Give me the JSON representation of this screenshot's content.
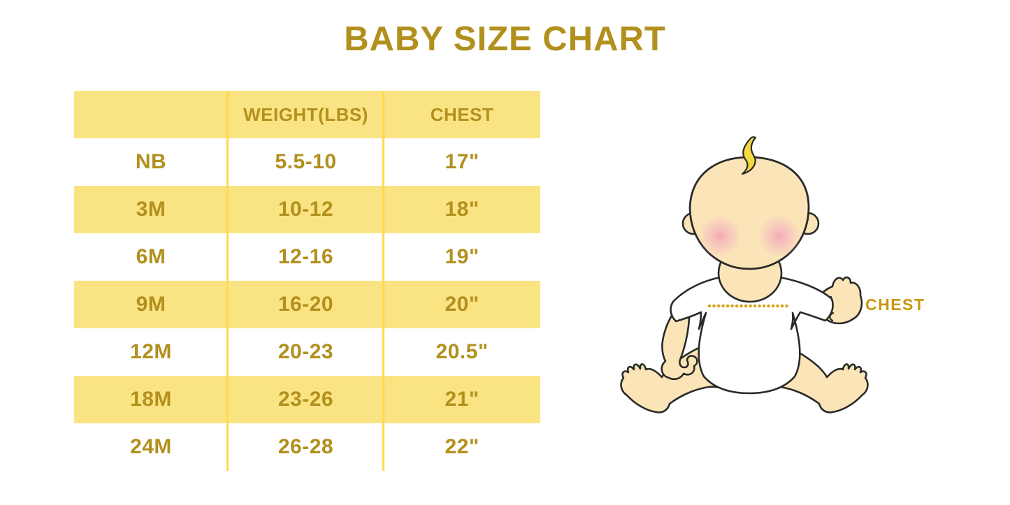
{
  "title": {
    "text": "BABY SIZE CHART"
  },
  "table": {
    "header": {
      "size": "",
      "weight": "WEIGHT(LBS)",
      "chest": "CHEST"
    },
    "rows": [
      {
        "size": "NB",
        "weight": "5.5-10",
        "chest": "17\""
      },
      {
        "size": "3M",
        "weight": "10-12",
        "chest": "18\""
      },
      {
        "size": "6M",
        "weight": "12-16",
        "chest": "19\""
      },
      {
        "size": "9M",
        "weight": "16-20",
        "chest": "20\""
      },
      {
        "size": "12M",
        "weight": "20-23",
        "chest": "20.5\""
      },
      {
        "size": "18M",
        "weight": "23-26",
        "chest": "21\""
      },
      {
        "size": "24M",
        "weight": "26-28",
        "chest": "22\""
      }
    ]
  },
  "figure": {
    "chest_label": "CHEST"
  },
  "colors": {
    "title_text": "#B2901E",
    "table_text": "#B2901E",
    "row_yellow": "#FAE382",
    "row_white": "#FFFFFF",
    "column_separator": "#FFD94E",
    "chest_label": "#C7980F",
    "measure_dots": "#D7A51E",
    "baby_skin": "#FBE5B8",
    "baby_hair": "#F5D93F",
    "baby_blush": "#F29CB4",
    "baby_outline": "#2A2A2A",
    "shirt": "#FFFFFF"
  },
  "chart_data": {
    "type": "table",
    "title": "BABY SIZE CHART",
    "columns": [
      "",
      "WEIGHT(LBS)",
      "CHEST"
    ],
    "rows": [
      [
        "NB",
        "5.5-10",
        "17\""
      ],
      [
        "3M",
        "10-12",
        "18\""
      ],
      [
        "6M",
        "12-16",
        "19\""
      ],
      [
        "9M",
        "16-20",
        "20\""
      ],
      [
        "12M",
        "20-23",
        "20.5\""
      ],
      [
        "18M",
        "23-26",
        "21\""
      ],
      [
        "24M",
        "26-28",
        "22\""
      ]
    ],
    "annotations": [
      "CHEST label with dotted measurement line across baby's chest"
    ]
  }
}
